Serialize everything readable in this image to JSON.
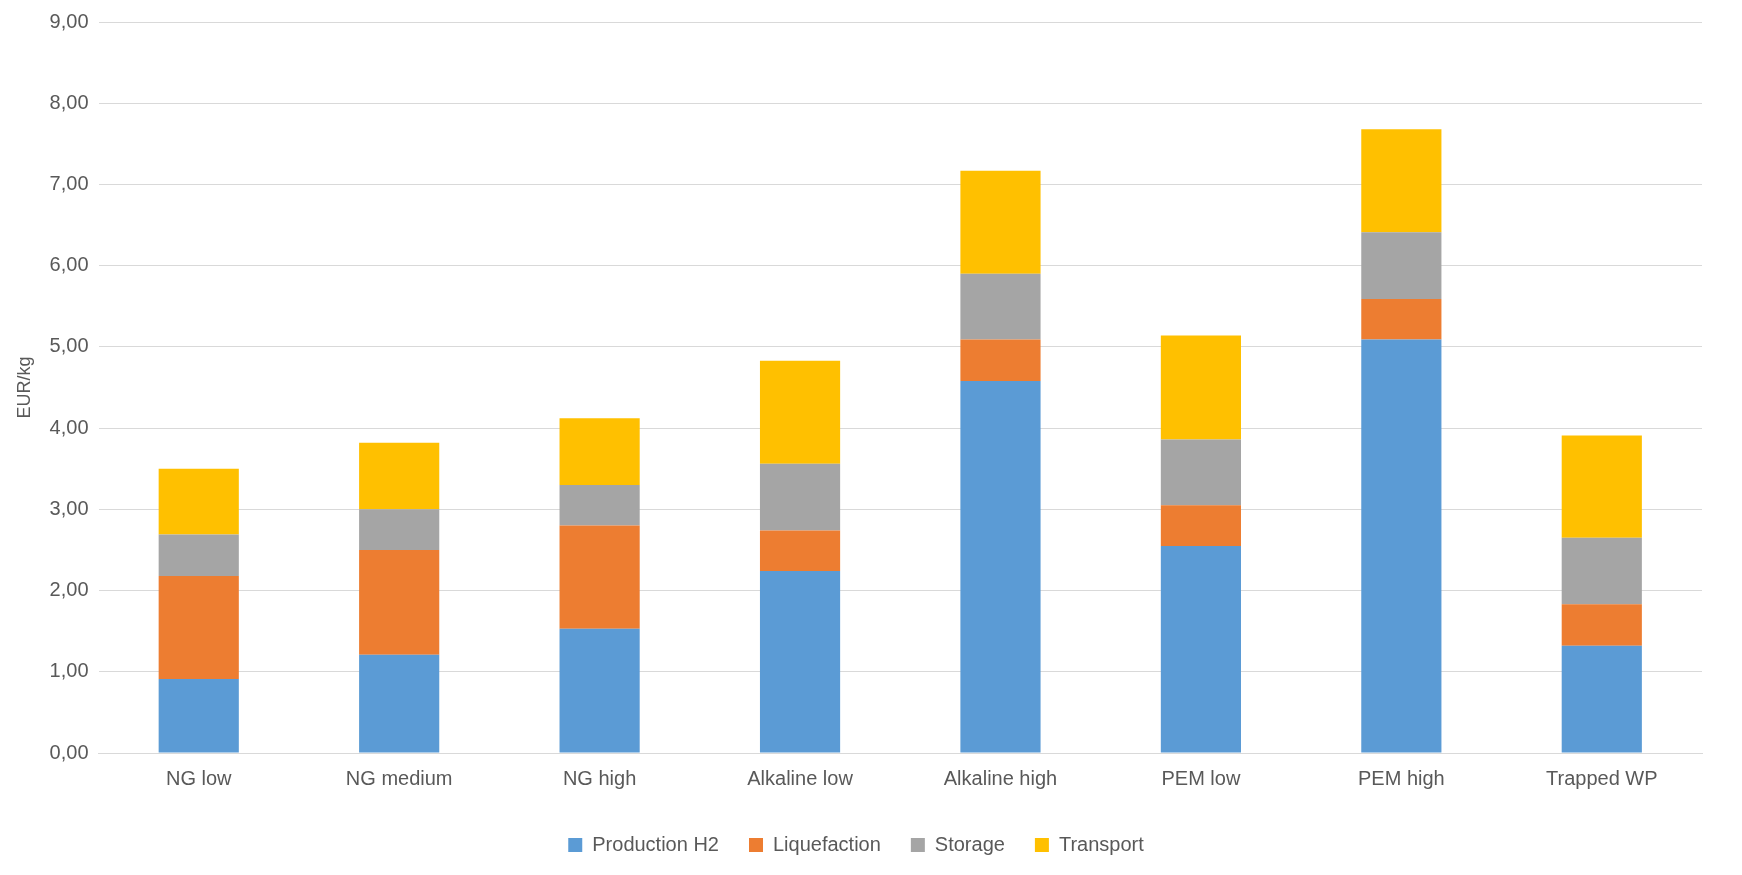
{
  "chart_data": {
    "type": "bar",
    "stacked": true,
    "ylabel": "EUR/kg",
    "categories": [
      "NG low",
      "NG medium",
      "NG high",
      "Alkaline low",
      "Alkaline high",
      "PEM low",
      "PEM high",
      "Trapped WP"
    ],
    "series": [
      {
        "name": "Production H2",
        "color": "#5b9bd5",
        "values": [
          0.91,
          1.21,
          1.53,
          2.24,
          4.58,
          2.55,
          5.09,
          1.32
        ]
      },
      {
        "name": "Liquefaction",
        "color": "#ed7d31",
        "values": [
          1.27,
          1.29,
          1.27,
          0.5,
          0.51,
          0.5,
          0.5,
          0.51
        ]
      },
      {
        "name": "Storage",
        "color": "#a5a5a5",
        "values": [
          0.51,
          0.5,
          0.5,
          0.82,
          0.81,
          0.81,
          0.82,
          0.82
        ]
      },
      {
        "name": "Transport",
        "color": "#ffc000",
        "values": [
          0.81,
          0.82,
          0.82,
          1.27,
          1.27,
          1.28,
          1.27,
          1.26
        ]
      }
    ],
    "ylim": [
      0,
      9
    ],
    "yticks": [
      {
        "value": 0,
        "label": "0,00"
      },
      {
        "value": 1,
        "label": "1,00"
      },
      {
        "value": 2,
        "label": "2,00"
      },
      {
        "value": 3,
        "label": "3,00"
      },
      {
        "value": 4,
        "label": "4,00"
      },
      {
        "value": 5,
        "label": "5,00"
      },
      {
        "value": 6,
        "label": "6,00"
      },
      {
        "value": 7,
        "label": "7,00"
      },
      {
        "value": 8,
        "label": "8,00"
      },
      {
        "value": 9,
        "label": "9,00"
      }
    ],
    "grid": "y",
    "legend": "bottom"
  }
}
